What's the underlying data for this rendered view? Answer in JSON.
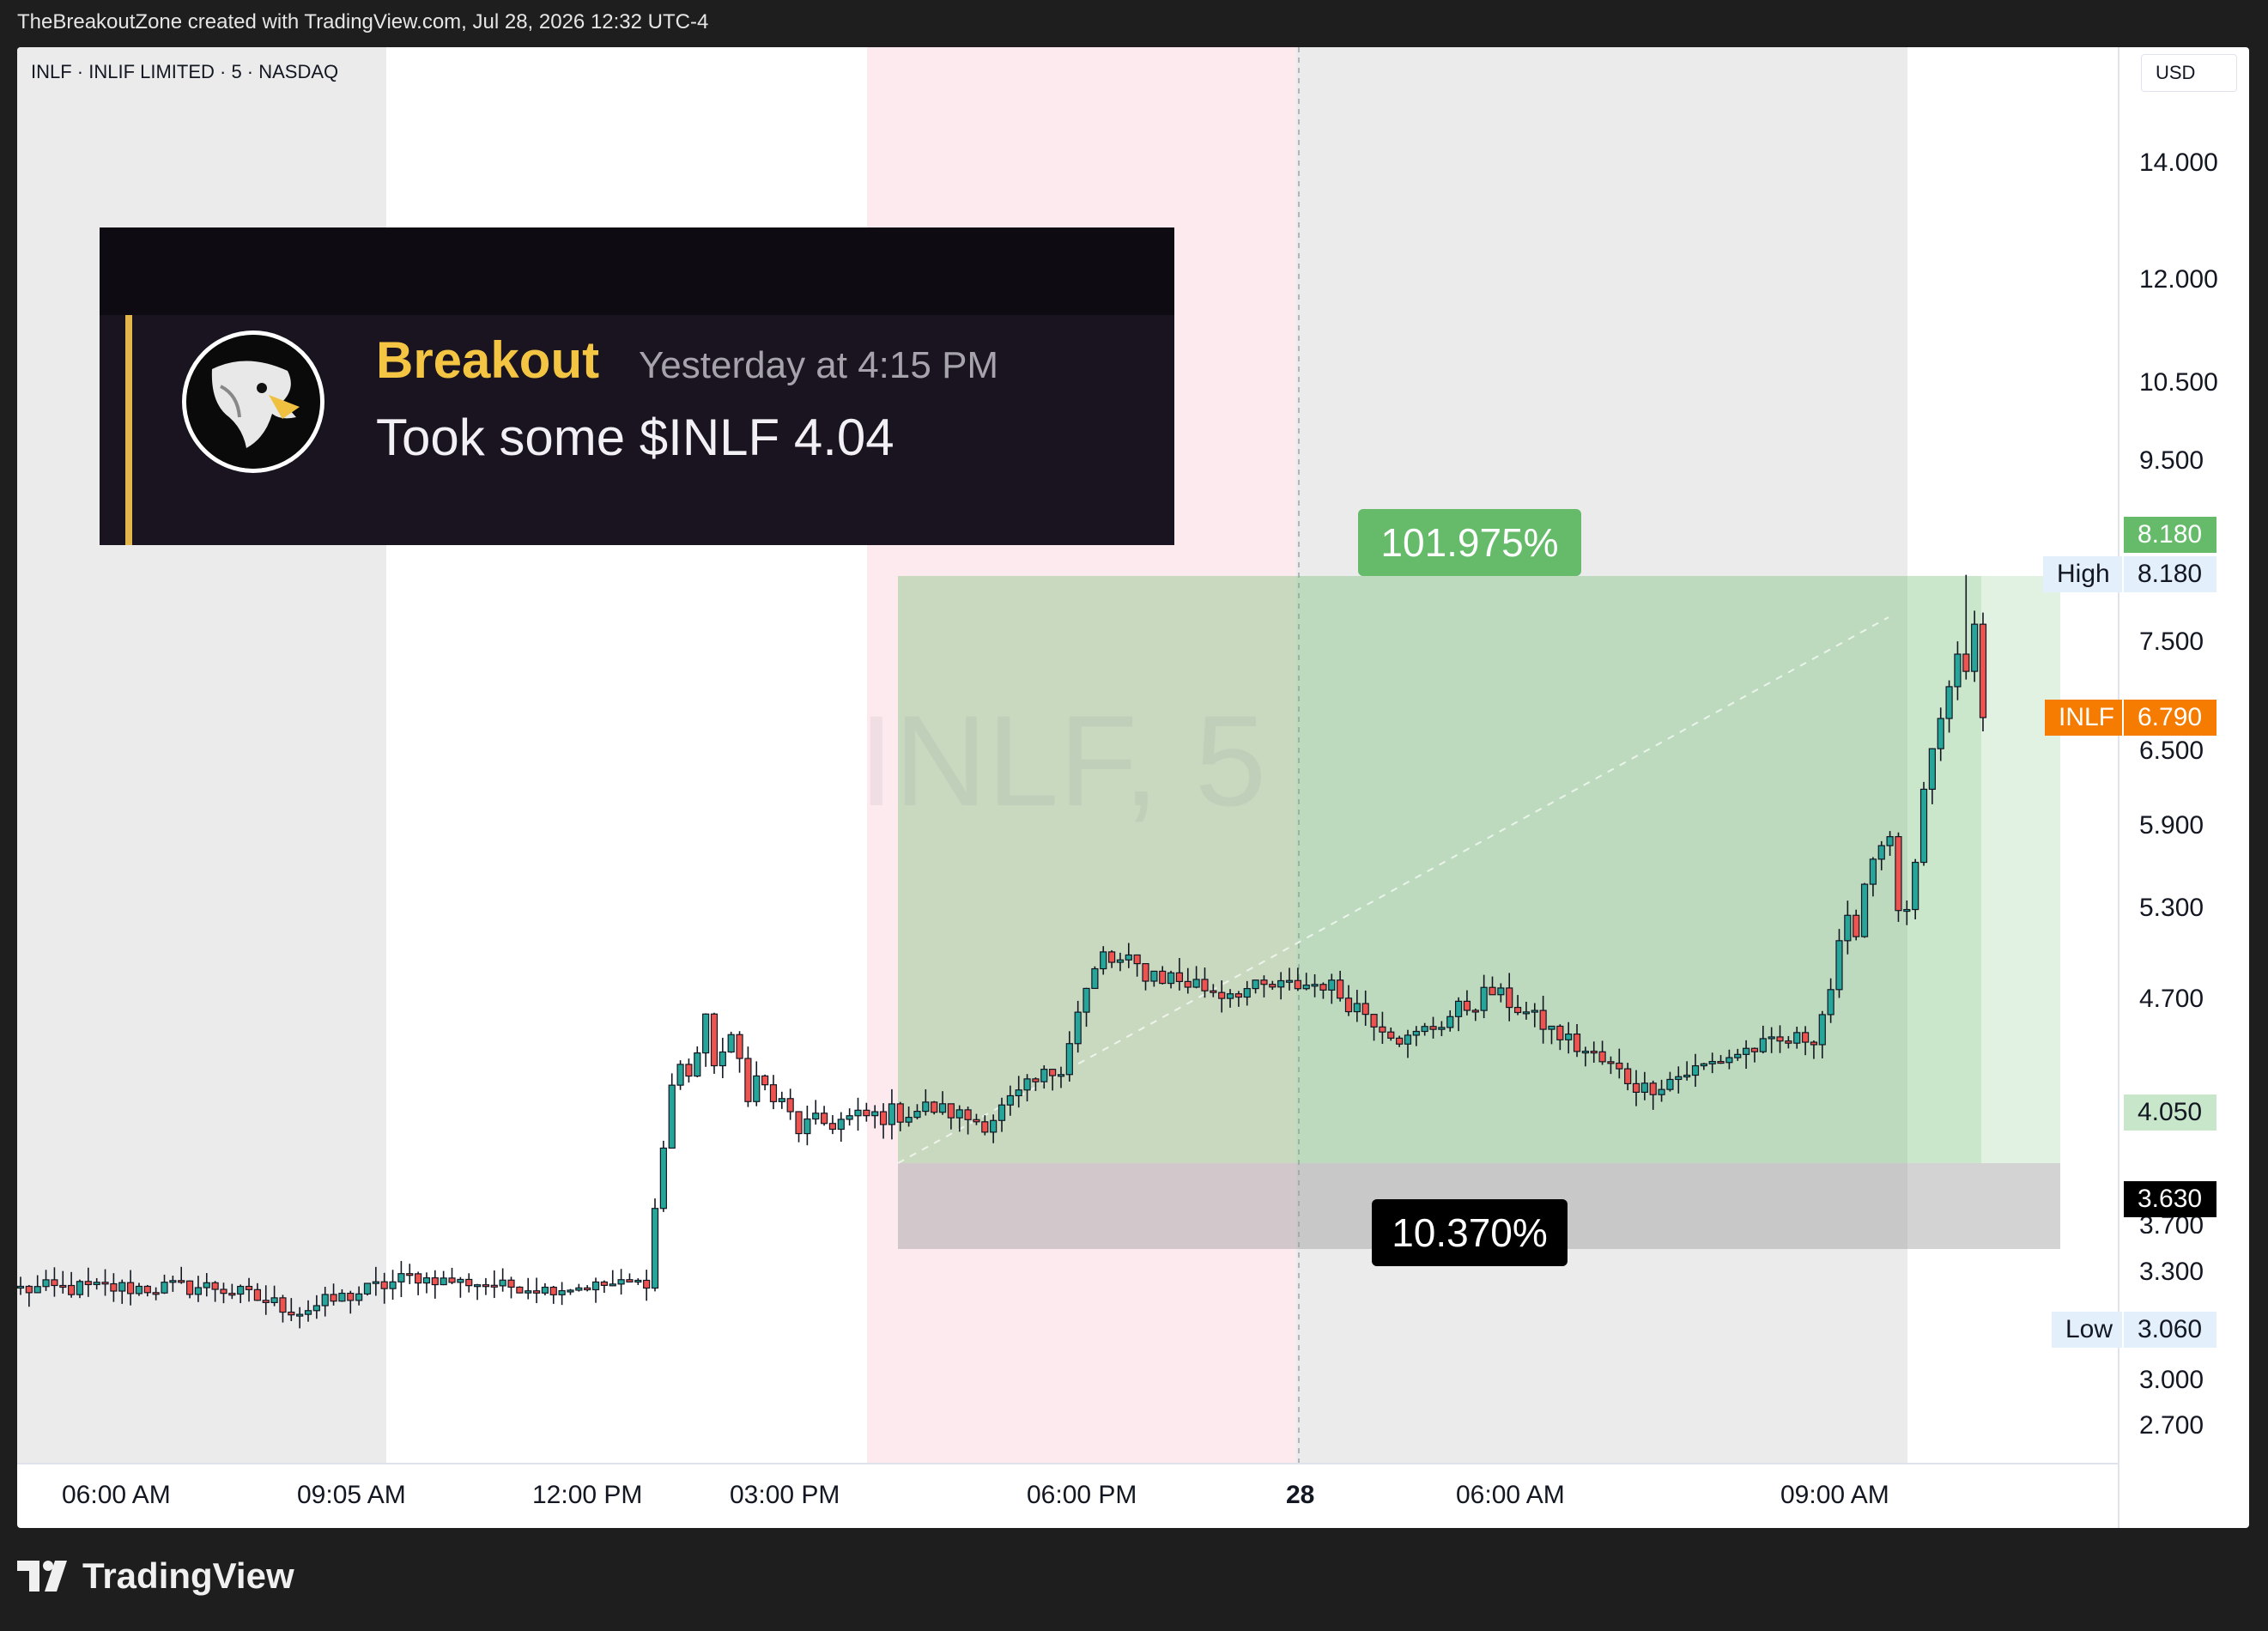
{
  "caption": "TheBreakoutZone created with TradingView.com, Jul 28, 2026 12:32 UTC-4",
  "header": {
    "symbol_line": "INLF · INLIF LIMITED · 5 · NASDAQ",
    "currency": "USD"
  },
  "watermark": "INLF, 5",
  "alert": {
    "author": "Breakout",
    "time": "Yesterday at 4:15 PM",
    "message": "Took some $INLF 4.04",
    "avatar_icon": "eagle-icon"
  },
  "position": {
    "profit_pct": "101.975%",
    "loss_pct": "10.370%",
    "entry": 4.05,
    "target": 8.18,
    "stop": 3.63
  },
  "price_axis": {
    "ticks": [
      "14.000",
      "12.000",
      "10.500",
      "9.500",
      "7.500",
      "6.500",
      "5.900",
      "5.300",
      "4.700",
      "3.300",
      "2.700"
    ],
    "hidden_tick": "3.000",
    "partially_hidden_tick": "3.700",
    "tags": {
      "target": "8.180",
      "high_label": "High",
      "high_value": "8.180",
      "ticker_label": "INLF",
      "last_value": "6.790",
      "entry": "4.050",
      "stop": "3.630",
      "low_label": "Low",
      "low_value": "3.060"
    }
  },
  "time_axis": [
    "06:00 AM",
    "09:05 AM",
    "12:00 PM",
    "03:00 PM",
    "06:00 PM",
    "28",
    "06:00 AM",
    "09:00 AM"
  ],
  "colors": {
    "up": "#26a69a",
    "down": "#ef5350",
    "profit_zone": "#66bb6a",
    "loss_zone": "#9e9e9e",
    "last_price": "#f57c00",
    "session_gray": "#ebebeb",
    "session_pink": "#fdeaef"
  },
  "logo": "TradingView",
  "chart_data": {
    "type": "candlestick",
    "title": "INLF · INLIF LIMITED · 5 · NASDAQ",
    "ylabel": "USD",
    "ylim": [
      2.55,
      15.5
    ],
    "y_scale": "log",
    "high": 8.18,
    "low": 3.06,
    "last": 6.79,
    "grid": false,
    "segments": [
      {
        "n": 24,
        "from": 3.22,
        "to": 3.23,
        "vol": 0.012
      },
      {
        "n": 10,
        "from": 3.23,
        "to": 3.13,
        "vol": 0.012
      },
      {
        "n": 13,
        "from": 3.13,
        "to": 3.27,
        "vol": 0.012
      },
      {
        "n": 16,
        "from": 3.27,
        "to": 3.22,
        "vol": 0.008
      },
      {
        "n": 12,
        "from": 3.22,
        "to": 3.25,
        "vol": 0.008
      },
      {
        "n": 3,
        "from": 3.25,
        "to": 4.2,
        "vol": 0.03
      },
      {
        "n": 4,
        "from": 4.2,
        "to": 4.45,
        "vol": 0.04
      },
      {
        "n": 5,
        "from": 4.45,
        "to": 4.28,
        "vol": 0.04
      },
      {
        "n": 6,
        "from": 4.28,
        "to": 3.98,
        "vol": 0.02
      },
      {
        "n": 16,
        "from": 3.98,
        "to": 4.08,
        "vol": 0.015
      },
      {
        "n": 6,
        "from": 4.08,
        "to": 4.0,
        "vol": 0.012
      },
      {
        "n": 8,
        "from": 4.0,
        "to": 4.28,
        "vol": 0.015
      },
      {
        "n": 6,
        "from": 4.28,
        "to": 4.95,
        "vol": 0.03
      },
      {
        "n": 14,
        "from": 4.95,
        "to": 4.75,
        "vol": 0.018
      },
      {
        "n": 12,
        "from": 4.75,
        "to": 4.8,
        "vol": 0.012
      },
      {
        "n": 10,
        "from": 4.8,
        "to": 4.45,
        "vol": 0.015
      },
      {
        "n": 10,
        "from": 4.45,
        "to": 4.75,
        "vol": 0.015
      },
      {
        "n": 8,
        "from": 4.75,
        "to": 4.48,
        "vol": 0.012
      },
      {
        "n": 10,
        "from": 4.48,
        "to": 4.18,
        "vol": 0.015
      },
      {
        "n": 12,
        "from": 4.18,
        "to": 4.4,
        "vol": 0.012
      },
      {
        "n": 8,
        "from": 4.4,
        "to": 4.48,
        "vol": 0.012
      },
      {
        "n": 4,
        "from": 4.48,
        "to": 5.1,
        "vol": 0.03
      },
      {
        "n": 4,
        "from": 5.1,
        "to": 5.9,
        "vol": 0.04
      },
      {
        "n": 3,
        "from": 5.9,
        "to": 5.1,
        "vol": 0.04
      },
      {
        "n": 4,
        "from": 5.1,
        "to": 6.8,
        "vol": 0.04
      },
      {
        "n": 4,
        "from": 6.8,
        "to": 7.5,
        "vol": 0.04
      },
      {
        "n": 1,
        "from": 7.5,
        "to": 6.79,
        "vol": 0.04
      }
    ]
  }
}
